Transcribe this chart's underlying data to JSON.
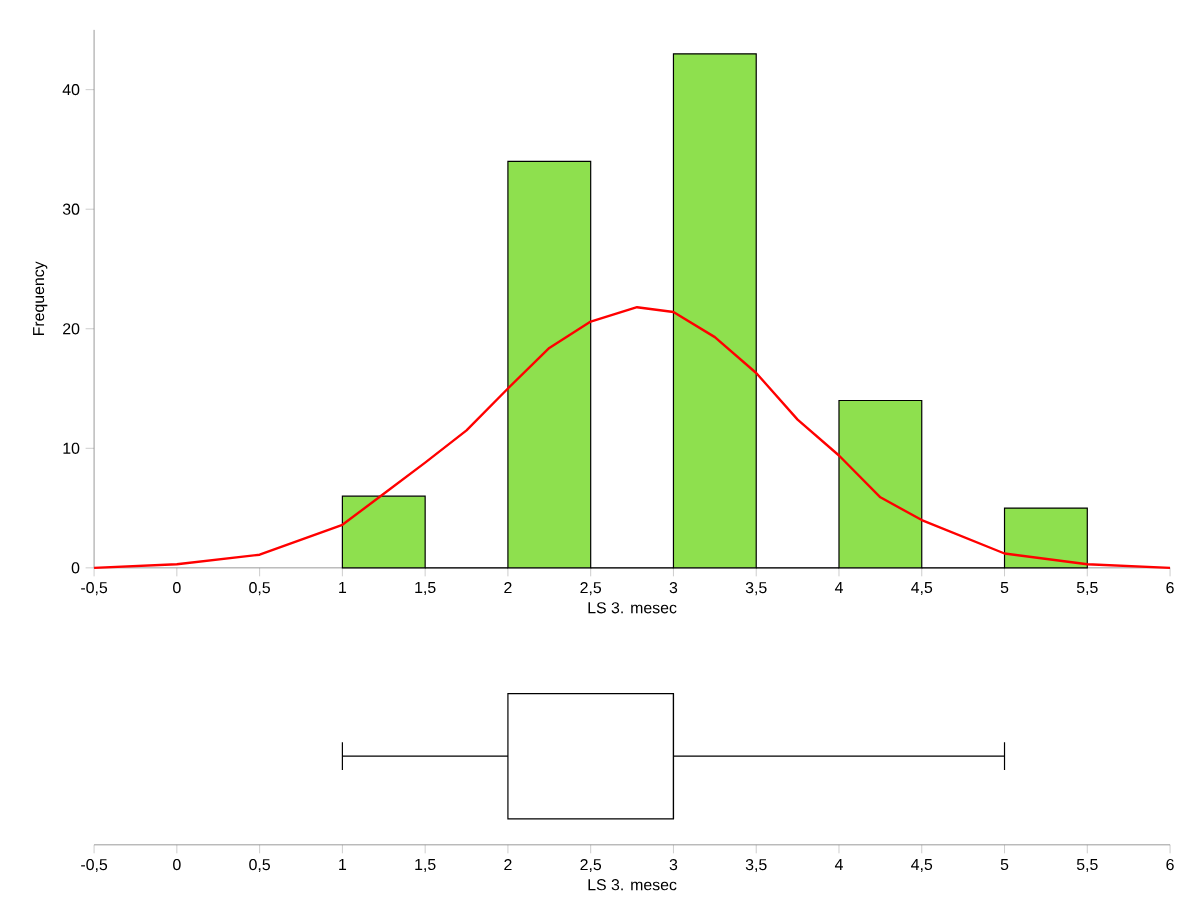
{
  "chart_data": [
    {
      "type": "histogram",
      "xlabel": "LS 3. mesec",
      "ylabel": "Frequency",
      "xlim": [
        -0.5,
        6
      ],
      "ylim": [
        0,
        45
      ],
      "xticks": [
        {
          "value": -0.5,
          "label": "-0,5"
        },
        0,
        {
          "value": 0.5,
          "label": "0,5"
        },
        1,
        {
          "value": 1.5,
          "label": "1,5"
        },
        2,
        {
          "value": 2.5,
          "label": "2,5"
        },
        3,
        {
          "value": 3.5,
          "label": "3,5"
        },
        4,
        {
          "value": 4.5,
          "label": "4,5"
        },
        5,
        {
          "value": 5.5,
          "label": "5,5"
        },
        6
      ],
      "yticks": [
        0,
        10,
        20,
        30,
        40
      ],
      "series": [
        {
          "type": "histogram",
          "color": "#8ee04e",
          "bins": [
            1,
            1.5,
            2,
            2.5,
            3,
            3.5,
            4,
            4.5,
            5,
            5.5
          ],
          "values": [
            6,
            0,
            34,
            0,
            43,
            0,
            14,
            0,
            5
          ]
        },
        {
          "type": "line",
          "color": "#ff0000",
          "x": [
            -0.5,
            0,
            0.5,
            1,
            1.25,
            1.5,
            1.75,
            2,
            2.25,
            2.5,
            2.78,
            3,
            3.25,
            3.5,
            3.75,
            4,
            4.25,
            4.5,
            5,
            5.5,
            6
          ],
          "values": [
            0,
            0.3,
            1.1,
            3.6,
            6.2,
            8.8,
            11.5,
            15,
            18.4,
            20.6,
            21.8,
            21.4,
            19.3,
            16.3,
            12.4,
            9.4,
            5.9,
            4,
            1.2,
            0.3,
            0
          ]
        }
      ]
    },
    {
      "type": "box",
      "orientation": "horizontal",
      "xlabel": "LS 3. mesec",
      "categories": [
        null
      ],
      "xlim": [
        -0.5,
        6
      ],
      "xticks": [
        {
          "value": -0.5,
          "label": "-0,5"
        },
        0,
        {
          "value": 0.5,
          "label": "0,5"
        },
        1,
        {
          "value": 1.5,
          "label": "1,5"
        },
        2,
        {
          "value": 2.5,
          "label": "2,5"
        },
        3,
        {
          "value": 3.5,
          "label": "3,5"
        },
        4,
        {
          "value": 4.5,
          "label": "4,5"
        },
        5,
        {
          "value": 5.5,
          "label": "5,5"
        },
        6
      ],
      "boxes": [
        {
          "low": 1,
          "q1": 2,
          "median": 3,
          "q3": 3,
          "high": 5
        }
      ]
    }
  ]
}
